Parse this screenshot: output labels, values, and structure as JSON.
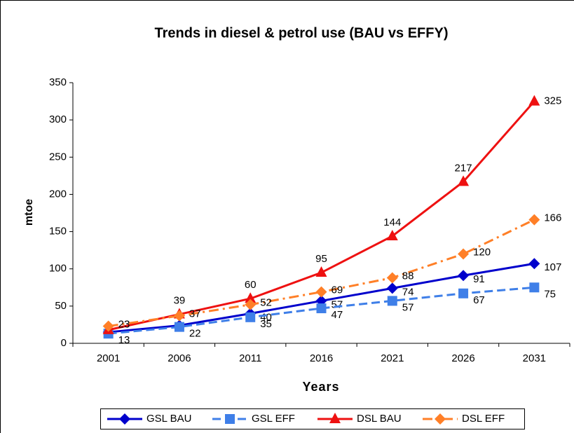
{
  "chart_data": {
    "type": "line",
    "title": "Trends in diesel & petrol use (BAU vs EFFY)",
    "x_label": "Years",
    "y_label": "mtoe",
    "categories": [
      "2001",
      "2006",
      "2011",
      "2016",
      "2021",
      "2026",
      "2031"
    ],
    "ylim": [
      0,
      350
    ],
    "yticks": [
      0,
      50,
      100,
      150,
      200,
      250,
      300,
      350
    ],
    "legend": "bottom",
    "series": [
      {
        "name": "GSL BAU",
        "color": "#0000cc",
        "marker": "diamond",
        "dash": "solid",
        "values": [
          15,
          24,
          40,
          57,
          74,
          91,
          107
        ],
        "value_labels": [
          null,
          null,
          "40",
          "57",
          "74",
          "91",
          "107"
        ]
      },
      {
        "name": "GSL EFF",
        "color": "#3f7fe8",
        "marker": "square",
        "dash": "dash",
        "values": [
          13,
          22,
          35,
          47,
          57,
          67,
          75
        ],
        "value_labels": [
          "13",
          "22",
          "35",
          "47",
          "57",
          "67",
          "75"
        ]
      },
      {
        "name": "DSL BAU",
        "color": "#ee1111",
        "marker": "triangle",
        "dash": "solid",
        "values": [
          18,
          39,
          60,
          95,
          144,
          217,
          325
        ],
        "value_labels": [
          null,
          "39",
          "60",
          "95",
          "144",
          "217",
          "325"
        ]
      },
      {
        "name": "DSL EFF",
        "color": "#ff7f27",
        "marker": "diamond",
        "dash": "dashdot",
        "values": [
          23,
          37,
          52,
          69,
          88,
          120,
          166
        ],
        "value_labels": [
          "23",
          "37",
          "52",
          "69",
          "88",
          "120",
          "166"
        ]
      }
    ]
  }
}
